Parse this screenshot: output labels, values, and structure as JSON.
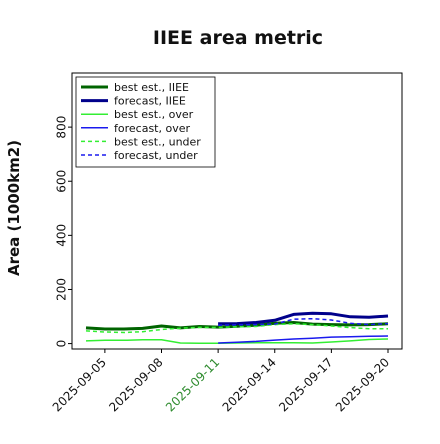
{
  "chart_data": {
    "type": "line",
    "title": "IIEE area metric",
    "xlabel": "",
    "ylabel": "Area (1000km2)",
    "ylim": [
      -20,
      1000
    ],
    "yticks": [
      0,
      200,
      400,
      600,
      800
    ],
    "x": [
      "2025-09-04",
      "2025-09-05",
      "2025-09-06",
      "2025-09-07",
      "2025-09-08",
      "2025-09-09",
      "2025-09-10",
      "2025-09-11",
      "2025-09-12",
      "2025-09-13",
      "2025-09-14",
      "2025-09-15",
      "2025-09-16",
      "2025-09-17",
      "2025-09-18",
      "2025-09-19",
      "2025-09-20"
    ],
    "xticks": [
      "2025-09-05",
      "2025-09-08",
      "2025-09-11",
      "2025-09-14",
      "2025-09-17",
      "2025-09-20"
    ],
    "highlight_tick": "2025-09-11",
    "highlight_color": "#2e8b2e",
    "grid": false,
    "legend_position": "upper-left",
    "series": [
      {
        "name": "best est., IIEE",
        "color": "#006400",
        "style": "solid",
        "width": 3,
        "values": [
          58,
          54,
          54,
          56,
          65,
          58,
          63,
          61,
          64,
          68,
          75,
          78,
          72,
          70,
          69,
          70,
          73
        ]
      },
      {
        "name": "forecast, IIEE",
        "color": "#00008b",
        "style": "solid",
        "width": 3,
        "values": [
          null,
          null,
          null,
          null,
          null,
          null,
          null,
          73,
          74,
          78,
          86,
          108,
          112,
          110,
          99,
          97,
          102
        ]
      },
      {
        "name": "best est., over",
        "color": "#33ee33",
        "style": "solid",
        "width": 1.5,
        "values": [
          10,
          12,
          12,
          14,
          14,
          2,
          1,
          1,
          2,
          3,
          3,
          3,
          2,
          6,
          10,
          15,
          17
        ]
      },
      {
        "name": "forecast, over",
        "color": "#1a1aee",
        "style": "solid",
        "width": 1.5,
        "values": [
          null,
          null,
          null,
          null,
          null,
          null,
          null,
          2,
          5,
          8,
          13,
          17,
          20,
          24,
          25,
          27,
          28
        ]
      },
      {
        "name": "best est., under",
        "color": "#33ee33",
        "style": "dashed",
        "width": 1.5,
        "values": [
          47,
          43,
          41,
          44,
          52,
          57,
          60,
          60,
          62,
          63,
          70,
          73,
          70,
          65,
          59,
          55,
          55
        ]
      },
      {
        "name": "forecast, under",
        "color": "#1a1aee",
        "style": "dashed",
        "width": 1.5,
        "values": [
          null,
          null,
          null,
          null,
          null,
          null,
          null,
          68,
          69,
          70,
          72,
          90,
          92,
          87,
          75,
          70,
          74
        ]
      }
    ]
  }
}
